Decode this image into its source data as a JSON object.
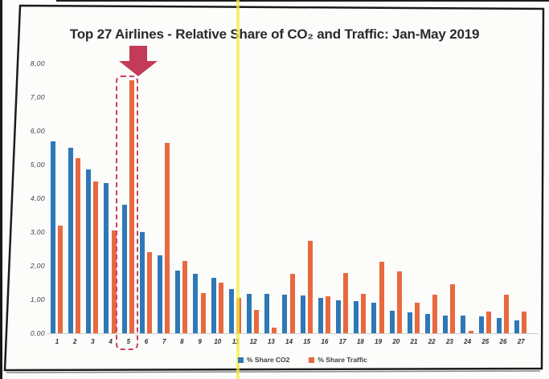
{
  "chart_data": {
    "type": "bar",
    "title": "Top 27 Airlines - Relative Share of CO₂ and Traffic: Jan-May 2019",
    "categories": [
      "1",
      "2",
      "3",
      "4",
      "5",
      "6",
      "7",
      "8",
      "9",
      "10",
      "11",
      "12",
      "13",
      "14",
      "15",
      "16",
      "17",
      "18",
      "19",
      "20",
      "21",
      "22",
      "23",
      "24",
      "25",
      "26",
      "27"
    ],
    "series": [
      {
        "name": "% Share CO2",
        "color": "#2E78B8",
        "values": [
          5.7,
          5.5,
          4.85,
          4.45,
          3.8,
          3.0,
          2.3,
          1.85,
          1.75,
          1.65,
          1.3,
          1.17,
          1.17,
          1.15,
          1.12,
          1.05,
          0.98,
          0.95,
          0.9,
          0.66,
          0.61,
          0.58,
          0.52,
          0.52,
          0.49,
          0.45,
          0.37
        ]
      },
      {
        "name": "% Share Traffic",
        "color": "#E8693F",
        "values": [
          3.2,
          5.2,
          4.5,
          3.05,
          7.5,
          2.4,
          5.65,
          2.15,
          1.2,
          1.5,
          1.05,
          0.68,
          0.16,
          1.77,
          2.73,
          1.1,
          1.79,
          1.16,
          2.11,
          1.83,
          0.9,
          1.14,
          1.45,
          0.08,
          0.64,
          1.14,
          0.64
        ]
      }
    ],
    "xlabel": "",
    "ylabel": "",
    "ylim": [
      0,
      8
    ],
    "ytick_labels": [
      "0,00",
      "1,00",
      "2,00",
      "3,00",
      "4,00",
      "5,00",
      "6,00",
      "7,00",
      "8,00"
    ],
    "grid": false,
    "legend_position": "bottom"
  },
  "annotations": {
    "highlighted_category": "5",
    "arrow_color": "#C23B58",
    "highlight_box_color": "#CC4060",
    "yellow_line_color": "#F2EE3C",
    "frame_color": "#1B1B1B"
  }
}
